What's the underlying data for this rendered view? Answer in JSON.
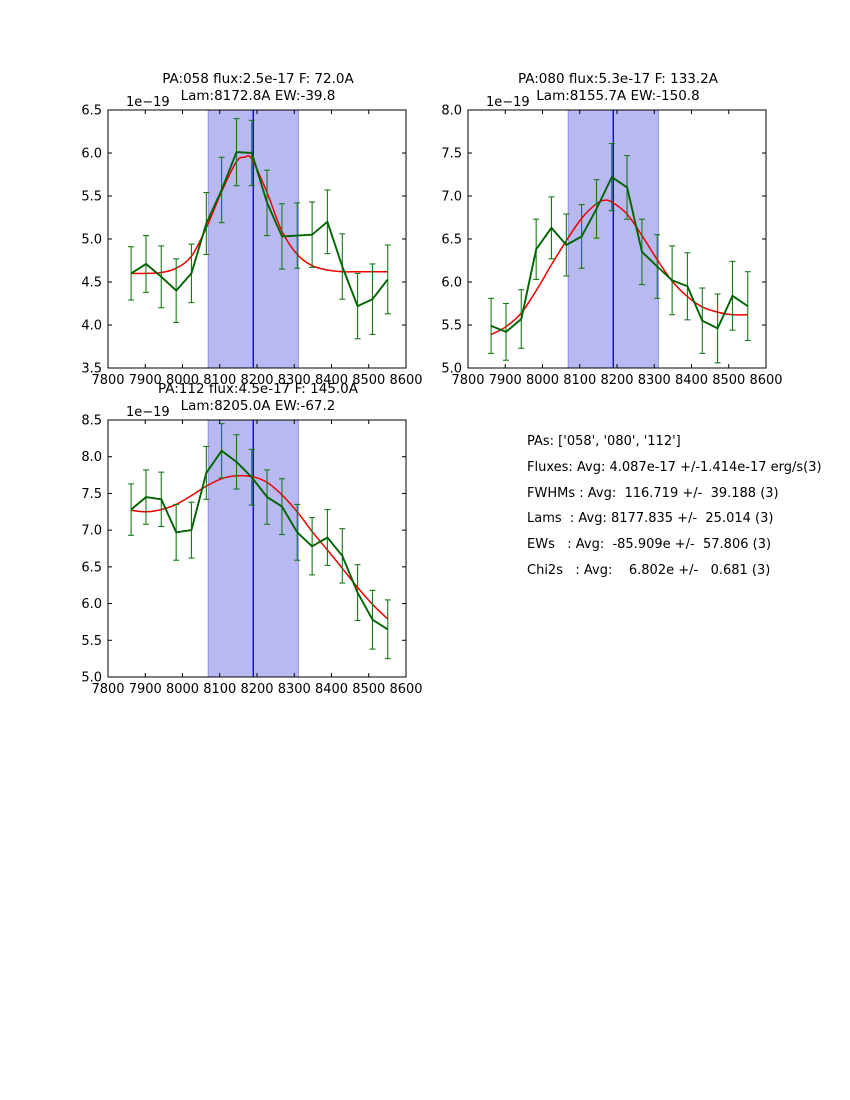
{
  "figure": {
    "colors": {
      "background": "#ffffff",
      "band_fill": "#b9b9f2",
      "band_edge": "#8b8be0",
      "center_line": "#0000cc",
      "fit_line": "#ee0000",
      "data_line": "#006400",
      "error_bar": "#177a17",
      "axis": "#000000",
      "text": "#000000"
    }
  },
  "summary": {
    "lines": [
      "PAs: ['058', '080', '112']",
      "Fluxes: Avg: 4.087e-17 +/-1.414e-17 erg/s(3)",
      "FWHMs : Avg:  116.719 +/-  39.188 (3)",
      "Lams  : Avg: 8177.835 +/-  25.014 (3)",
      "EWs   : Avg:  -85.909e +/-  57.806 (3)",
      "Chi2s   : Avg:    6.802e +/-   0.681 (3)"
    ]
  },
  "chart_data": [
    {
      "type": "line",
      "title_line1": "PA:058 flux:2.5e-17 F: 72.0A",
      "title_line2": "Lam:8172.8A EW:-39.8",
      "offset_label": "1e−19",
      "xlabel": "",
      "ylabel": "",
      "xlim": [
        7800,
        8600
      ],
      "ylim": [
        3.5,
        6.5
      ],
      "xticks": [
        7800,
        7900,
        8000,
        8100,
        8200,
        8300,
        8400,
        8500,
        8600
      ],
      "yticks": [
        3.5,
        4.0,
        4.5,
        5.0,
        5.5,
        6.0,
        6.5
      ],
      "grid": false,
      "band_x": [
        8069,
        8311
      ],
      "marker_x": 8190,
      "x": [
        7862,
        7902,
        7943,
        7983,
        8024,
        8064,
        8105,
        8145,
        8186,
        8227,
        8267,
        8308,
        8348,
        8389,
        8429,
        8470,
        8510,
        8551
      ],
      "series": [
        {
          "name": "spectrum",
          "values": [
            4.6,
            4.71,
            4.56,
            4.4,
            4.6,
            5.18,
            5.57,
            6.01,
            6.0,
            5.42,
            5.03,
            5.04,
            5.05,
            5.2,
            4.68,
            4.22,
            4.3,
            4.53
          ],
          "errors": [
            0.31,
            0.33,
            0.36,
            0.37,
            0.34,
            0.36,
            0.38,
            0.39,
            0.38,
            0.38,
            0.38,
            0.38,
            0.38,
            0.37,
            0.38,
            0.38,
            0.41,
            0.4
          ]
        },
        {
          "name": "gaussian-fit",
          "x": [
            7862,
            7902,
            7943,
            7983,
            8024,
            8064,
            8105,
            8145,
            8166,
            8186,
            8227,
            8267,
            8308,
            8348,
            8389,
            8429,
            8470,
            8510,
            8551
          ],
          "values": [
            4.6,
            4.6,
            4.61,
            4.66,
            4.8,
            5.13,
            5.55,
            5.9,
            5.95,
            5.93,
            5.54,
            5.09,
            4.82,
            4.69,
            4.64,
            4.62,
            4.62,
            4.62,
            4.62
          ]
        }
      ]
    },
    {
      "type": "line",
      "title_line1": "PA:080 flux:5.3e-17 F: 133.2A",
      "title_line2": "Lam:8155.7A EW:-150.8",
      "offset_label": "1e−19",
      "xlabel": "",
      "ylabel": "",
      "xlim": [
        7800,
        8600
      ],
      "ylim": [
        5.0,
        8.0
      ],
      "xticks": [
        7800,
        7900,
        8000,
        8100,
        8200,
        8300,
        8400,
        8500,
        8600
      ],
      "yticks": [
        5.0,
        5.5,
        6.0,
        6.5,
        7.0,
        7.5,
        8.0
      ],
      "grid": false,
      "band_x": [
        8069,
        8311
      ],
      "marker_x": 8190,
      "x": [
        7862,
        7902,
        7943,
        7983,
        8024,
        8064,
        8105,
        8145,
        8186,
        8227,
        8267,
        8308,
        8348,
        8389,
        8429,
        8470,
        8510,
        8551
      ],
      "series": [
        {
          "name": "spectrum",
          "values": [
            5.49,
            5.42,
            5.57,
            6.38,
            6.63,
            6.43,
            6.53,
            6.85,
            7.22,
            7.1,
            6.35,
            6.18,
            6.02,
            5.95,
            5.55,
            5.46,
            5.84,
            5.72
          ],
          "errors": [
            0.32,
            0.33,
            0.34,
            0.35,
            0.36,
            0.36,
            0.37,
            0.34,
            0.39,
            0.37,
            0.38,
            0.37,
            0.4,
            0.39,
            0.38,
            0.4,
            0.4,
            0.4
          ]
        },
        {
          "name": "gaussian-fit",
          "x": [
            7862,
            7902,
            7943,
            7983,
            8024,
            8064,
            8105,
            8145,
            8166,
            8186,
            8227,
            8267,
            8308,
            8348,
            8389,
            8429,
            8470,
            8510,
            8551
          ],
          "values": [
            5.39,
            5.48,
            5.64,
            5.9,
            6.2,
            6.48,
            6.74,
            6.91,
            6.95,
            6.93,
            6.79,
            6.54,
            6.26,
            6.01,
            5.83,
            5.71,
            5.65,
            5.62,
            5.62
          ]
        }
      ]
    },
    {
      "type": "line",
      "title_line1": "PA:112 flux:4.5e-17 F: 145.0A",
      "title_line2": "Lam:8205.0A EW:-67.2",
      "offset_label": "1e−19",
      "xlabel": "",
      "ylabel": "",
      "xlim": [
        7800,
        8600
      ],
      "ylim": [
        5.0,
        8.5
      ],
      "xticks": [
        7800,
        7900,
        8000,
        8100,
        8200,
        8300,
        8400,
        8500,
        8600
      ],
      "yticks": [
        5.0,
        5.5,
        6.0,
        6.5,
        7.0,
        7.5,
        8.0,
        8.5
      ],
      "grid": false,
      "band_x": [
        8069,
        8311
      ],
      "marker_x": 8190,
      "x": [
        7862,
        7902,
        7943,
        7983,
        8024,
        8064,
        8105,
        8145,
        8186,
        8227,
        8267,
        8308,
        8348,
        8389,
        8429,
        8470,
        8510,
        8551
      ],
      "series": [
        {
          "name": "spectrum",
          "values": [
            7.28,
            7.45,
            7.42,
            6.97,
            7.0,
            7.78,
            8.08,
            7.93,
            7.72,
            7.45,
            7.32,
            6.97,
            6.78,
            6.9,
            6.65,
            6.15,
            5.78,
            5.65
          ],
          "errors": [
            0.35,
            0.37,
            0.37,
            0.38,
            0.38,
            0.36,
            0.37,
            0.37,
            0.38,
            0.37,
            0.38,
            0.38,
            0.39,
            0.38,
            0.37,
            0.38,
            0.4,
            0.4
          ]
        },
        {
          "name": "gaussian-fit",
          "x": [
            7862,
            7902,
            7943,
            7983,
            8024,
            8064,
            8105,
            8145,
            8186,
            8227,
            8267,
            8308,
            8348,
            8389,
            8429,
            8470,
            8510,
            8551
          ],
          "values": [
            7.27,
            7.25,
            7.28,
            7.35,
            7.47,
            7.6,
            7.7,
            7.74,
            7.73,
            7.65,
            7.48,
            7.25,
            6.98,
            6.73,
            6.48,
            6.22,
            5.99,
            5.79
          ]
        }
      ]
    }
  ]
}
